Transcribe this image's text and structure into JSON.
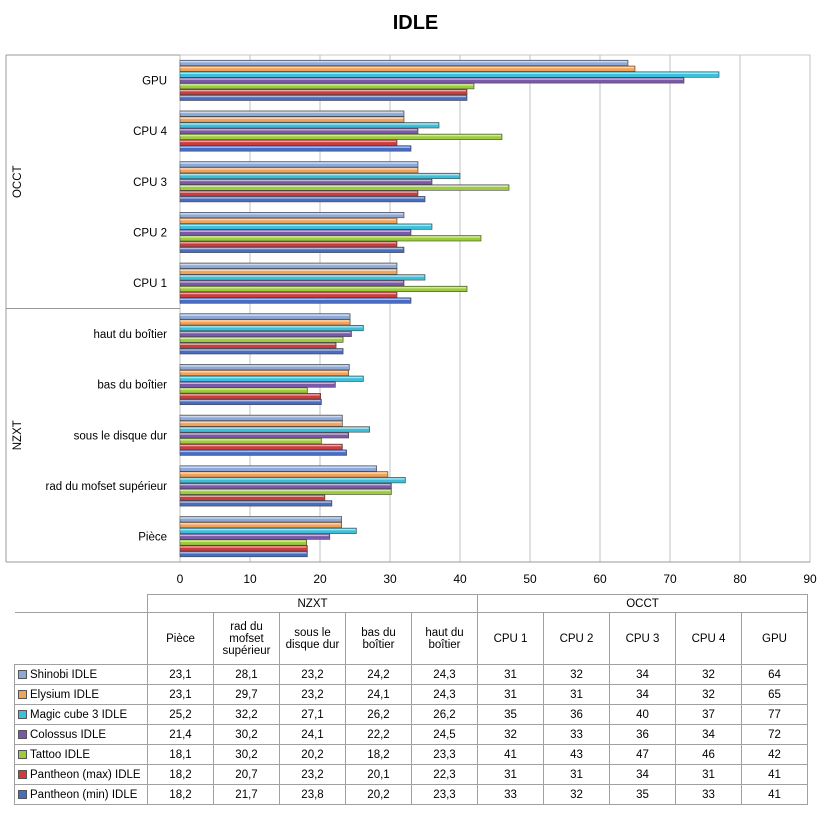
{
  "chart_data": {
    "type": "bar",
    "orientation": "horizontal",
    "title": "IDLE",
    "xlim": [
      0,
      90
    ],
    "xticks": [
      0,
      10,
      20,
      30,
      40,
      50,
      60,
      70,
      80,
      90
    ],
    "grid": "vertical",
    "legend": "data table below chart",
    "groups": [
      {
        "name": "NZXT",
        "categories": [
          "Pièce",
          "rad du mofset supérieur",
          "sous le disque dur",
          "bas du boîtier",
          "haut du boîtier"
        ]
      },
      {
        "name": "OCCT",
        "categories": [
          "CPU 1",
          "CPU 2",
          "CPU 3",
          "CPU 4",
          "GPU"
        ]
      }
    ],
    "categories": [
      "Pièce",
      "rad du mofset supérieur",
      "sous le disque dur",
      "bas du boîtier",
      "haut du boîtier",
      "CPU 1",
      "CPU 2",
      "CPU 3",
      "CPU 4",
      "GPU"
    ],
    "table_headers": [
      "Pièce",
      "rad du mofset supérieur",
      "sous le disque dur",
      "bas du boîtier",
      "haut du boîtier",
      "CPU 1",
      "CPU 2",
      "CPU 3",
      "CPU 4",
      "GPU"
    ],
    "series": [
      {
        "name": "Shinobi IDLE",
        "color": "#8ea9d8",
        "values": [
          23.1,
          28.1,
          23.2,
          24.2,
          24.3,
          31,
          32,
          34,
          32,
          64
        ],
        "labels": [
          "23,1",
          "28,1",
          "23,2",
          "24,2",
          "24,3",
          "31",
          "32",
          "34",
          "32",
          "64"
        ]
      },
      {
        "name": "Elysium IDLE",
        "color": "#f2a35a",
        "values": [
          23.1,
          29.7,
          23.2,
          24.1,
          24.3,
          31,
          31,
          34,
          32,
          65
        ],
        "labels": [
          "23,1",
          "29,7",
          "23,2",
          "24,1",
          "24,3",
          "31",
          "31",
          "34",
          "32",
          "65"
        ]
      },
      {
        "name": "Magic cube 3 IDLE",
        "color": "#3dbfd9",
        "values": [
          25.2,
          32.2,
          27.1,
          26.2,
          26.2,
          35,
          36,
          40,
          37,
          77
        ],
        "labels": [
          "25,2",
          "32,2",
          "27,1",
          "26,2",
          "26,2",
          "35",
          "36",
          "40",
          "37",
          "77"
        ]
      },
      {
        "name": "Colossus IDLE",
        "color": "#7a5aa8",
        "values": [
          21.4,
          30.2,
          24.1,
          22.2,
          24.5,
          32,
          33,
          36,
          34,
          72
        ],
        "labels": [
          "21,4",
          "30,2",
          "24,1",
          "22,2",
          "24,5",
          "32",
          "33",
          "36",
          "34",
          "72"
        ]
      },
      {
        "name": "Tattoo IDLE",
        "color": "#9ccc3c",
        "values": [
          18.1,
          30.2,
          20.2,
          18.2,
          23.3,
          41,
          43,
          47,
          46,
          42
        ],
        "labels": [
          "18,1",
          "30,2",
          "20,2",
          "18,2",
          "23,3",
          "41",
          "43",
          "47",
          "46",
          "42"
        ]
      },
      {
        "name": "Pantheon (max) IDLE",
        "color": "#cc3c3c",
        "values": [
          18.2,
          20.7,
          23.2,
          20.1,
          22.3,
          31,
          31,
          34,
          31,
          41
        ],
        "labels": [
          "18,2",
          "20,7",
          "23,2",
          "20,1",
          "22,3",
          "31",
          "31",
          "34",
          "31",
          "41"
        ]
      },
      {
        "name": "Pantheon (min) IDLE",
        "color": "#4a6cc0",
        "values": [
          18.2,
          21.7,
          23.8,
          20.2,
          23.3,
          33,
          32,
          35,
          33,
          41
        ],
        "labels": [
          "18,2",
          "21,7",
          "23,8",
          "20,2",
          "23,3",
          "33",
          "32",
          "35",
          "33",
          "41"
        ]
      }
    ]
  }
}
